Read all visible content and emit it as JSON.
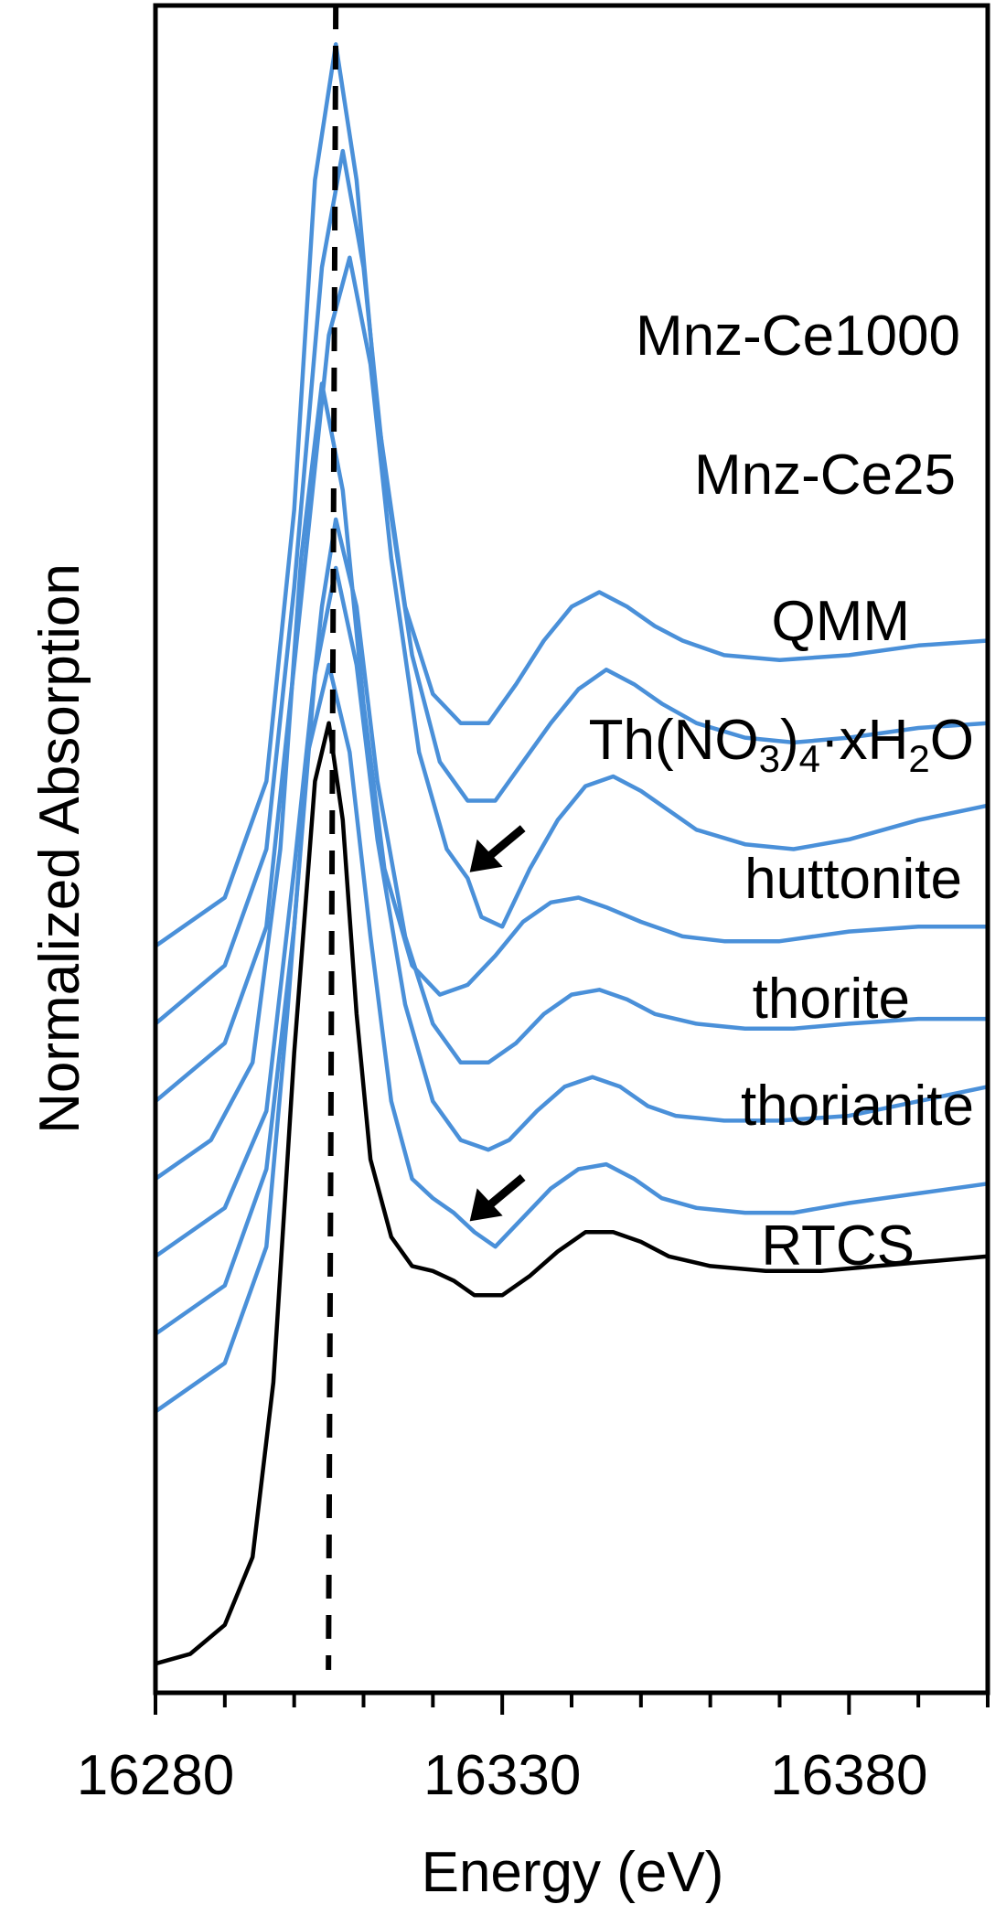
{
  "chart_data": {
    "type": "line",
    "title": "",
    "xlabel": "Energy (eV)",
    "ylabel": "Normalized Absorption",
    "xlim": [
      16280,
      16400
    ],
    "x_ticks": [
      16280,
      16330,
      16380
    ],
    "x_tick_labels": [
      "16280",
      "16330",
      "16380"
    ],
    "x_minor_tick_step": 10,
    "y_ticks": "none",
    "grid": false,
    "legend": "none (series labelled directly on curves)",
    "reference_line": {
      "x": 16306,
      "style": "dashed",
      "color": "#000000"
    },
    "series_colors": {
      "sample": "#4A90D9",
      "reference": "#000000"
    },
    "series": [
      {
        "name": "Mnz-Ce1000",
        "color": "#4A90D9",
        "points": [
          [
            16280,
            0.35
          ],
          [
            16290,
            0.4
          ],
          [
            16296,
            0.52
          ],
          [
            16300,
            0.8
          ],
          [
            16303,
            1.14
          ],
          [
            16306,
            1.28
          ],
          [
            16309,
            1.14
          ],
          [
            16312,
            0.9
          ],
          [
            16316,
            0.7
          ],
          [
            16320,
            0.61
          ],
          [
            16324,
            0.58
          ],
          [
            16328,
            0.58
          ],
          [
            16332,
            0.62
          ],
          [
            16336,
            0.665
          ],
          [
            16340,
            0.7
          ],
          [
            16344,
            0.715
          ],
          [
            16348,
            0.7
          ],
          [
            16352,
            0.68
          ],
          [
            16356,
            0.665
          ],
          [
            16362,
            0.65
          ],
          [
            16370,
            0.645
          ],
          [
            16380,
            0.65
          ],
          [
            16390,
            0.66
          ],
          [
            16400,
            0.665
          ]
        ]
      },
      {
        "name": "Mnz-Ce25",
        "color": "#4A90D9",
        "points": [
          [
            16280,
            0.27
          ],
          [
            16290,
            0.33
          ],
          [
            16296,
            0.45
          ],
          [
            16300,
            0.72
          ],
          [
            16304,
            1.05
          ],
          [
            16307,
            1.17
          ],
          [
            16310,
            1.05
          ],
          [
            16313,
            0.84
          ],
          [
            16317,
            0.65
          ],
          [
            16321,
            0.54
          ],
          [
            16325,
            0.5
          ],
          [
            16329,
            0.5
          ],
          [
            16333,
            0.54
          ],
          [
            16337,
            0.58
          ],
          [
            16341,
            0.615
          ],
          [
            16345,
            0.635
          ],
          [
            16349,
            0.62
          ],
          [
            16353,
            0.6
          ],
          [
            16358,
            0.58
          ],
          [
            16365,
            0.565
          ],
          [
            16372,
            0.56
          ],
          [
            16380,
            0.565
          ],
          [
            16390,
            0.575
          ],
          [
            16400,
            0.58
          ]
        ]
      },
      {
        "name": "QMM",
        "color": "#4A90D9",
        "points": [
          [
            16280,
            0.19
          ],
          [
            16290,
            0.25
          ],
          [
            16296,
            0.37
          ],
          [
            16300,
            0.64
          ],
          [
            16305,
            0.98
          ],
          [
            16308,
            1.06
          ],
          [
            16311,
            0.95
          ],
          [
            16314,
            0.75
          ],
          [
            16318,
            0.55
          ],
          [
            16322,
            0.45
          ],
          [
            16325,
            0.42
          ],
          [
            16327,
            0.38
          ],
          [
            16330,
            0.37
          ],
          [
            16334,
            0.43
          ],
          [
            16338,
            0.48
          ],
          [
            16342,
            0.515
          ],
          [
            16346,
            0.525
          ],
          [
            16350,
            0.51
          ],
          [
            16354,
            0.49
          ],
          [
            16358,
            0.47
          ],
          [
            16365,
            0.455
          ],
          [
            16372,
            0.45
          ],
          [
            16380,
            0.46
          ],
          [
            16390,
            0.48
          ],
          [
            16400,
            0.495
          ]
        ]
      },
      {
        "name": "Th(NO3)4·xH2O",
        "color": "#4A90D9",
        "points": [
          [
            16280,
            0.11
          ],
          [
            16288,
            0.15
          ],
          [
            16294,
            0.23
          ],
          [
            16298,
            0.45
          ],
          [
            16301,
            0.75
          ],
          [
            16304,
            0.93
          ],
          [
            16307,
            0.82
          ],
          [
            16310,
            0.6
          ],
          [
            16313,
            0.43
          ],
          [
            16317,
            0.33
          ],
          [
            16321,
            0.3
          ],
          [
            16325,
            0.31
          ],
          [
            16329,
            0.34
          ],
          [
            16333,
            0.375
          ],
          [
            16337,
            0.395
          ],
          [
            16341,
            0.4
          ],
          [
            16345,
            0.39
          ],
          [
            16350,
            0.375
          ],
          [
            16356,
            0.36
          ],
          [
            16362,
            0.355
          ],
          [
            16370,
            0.355
          ],
          [
            16380,
            0.365
          ],
          [
            16390,
            0.37
          ],
          [
            16400,
            0.37
          ]
        ]
      },
      {
        "name": "huttonite",
        "color": "#4A90D9",
        "points": [
          [
            16280,
            0.03
          ],
          [
            16290,
            0.08
          ],
          [
            16296,
            0.18
          ],
          [
            16300,
            0.43
          ],
          [
            16304,
            0.7
          ],
          [
            16306,
            0.79
          ],
          [
            16309,
            0.7
          ],
          [
            16312,
            0.52
          ],
          [
            16316,
            0.36
          ],
          [
            16320,
            0.27
          ],
          [
            16324,
            0.23
          ],
          [
            16328,
            0.23
          ],
          [
            16332,
            0.25
          ],
          [
            16336,
            0.28
          ],
          [
            16340,
            0.3
          ],
          [
            16344,
            0.305
          ],
          [
            16348,
            0.295
          ],
          [
            16352,
            0.28
          ],
          [
            16358,
            0.27
          ],
          [
            16365,
            0.265
          ],
          [
            16372,
            0.265
          ],
          [
            16380,
            0.27
          ],
          [
            16390,
            0.275
          ],
          [
            16400,
            0.275
          ]
        ]
      },
      {
        "name": "thorite",
        "color": "#4A90D9",
        "points": [
          [
            16280,
            -0.05
          ],
          [
            16290,
            0.0
          ],
          [
            16296,
            0.12
          ],
          [
            16300,
            0.37
          ],
          [
            16303,
            0.63
          ],
          [
            16306,
            0.74
          ],
          [
            16309,
            0.64
          ],
          [
            16312,
            0.46
          ],
          [
            16316,
            0.29
          ],
          [
            16320,
            0.19
          ],
          [
            16324,
            0.15
          ],
          [
            16328,
            0.14
          ],
          [
            16331,
            0.15
          ],
          [
            16335,
            0.18
          ],
          [
            16339,
            0.205
          ],
          [
            16343,
            0.215
          ],
          [
            16347,
            0.205
          ],
          [
            16351,
            0.185
          ],
          [
            16355,
            0.175
          ],
          [
            16362,
            0.17
          ],
          [
            16370,
            0.17
          ],
          [
            16380,
            0.175
          ],
          [
            16390,
            0.19
          ],
          [
            16400,
            0.205
          ]
        ]
      },
      {
        "name": "thorianite",
        "color": "#4A90D9",
        "points": [
          [
            16280,
            -0.13
          ],
          [
            16290,
            -0.08
          ],
          [
            16296,
            0.04
          ],
          [
            16299,
            0.28
          ],
          [
            16302,
            0.55
          ],
          [
            16305,
            0.64
          ],
          [
            16308,
            0.55
          ],
          [
            16311,
            0.36
          ],
          [
            16314,
            0.19
          ],
          [
            16317,
            0.11
          ],
          [
            16320,
            0.09
          ],
          [
            16323,
            0.075
          ],
          [
            16326,
            0.055
          ],
          [
            16329,
            0.04
          ],
          [
            16333,
            0.07
          ],
          [
            16337,
            0.1
          ],
          [
            16341,
            0.12
          ],
          [
            16345,
            0.125
          ],
          [
            16349,
            0.11
          ],
          [
            16353,
            0.09
          ],
          [
            16358,
            0.08
          ],
          [
            16365,
            0.075
          ],
          [
            16372,
            0.075
          ],
          [
            16380,
            0.085
          ],
          [
            16390,
            0.095
          ],
          [
            16400,
            0.105
          ]
        ]
      },
      {
        "name": "RTCS",
        "color": "#000000",
        "points": [
          [
            16280,
            -0.39
          ],
          [
            16285,
            -0.38
          ],
          [
            16290,
            -0.35
          ],
          [
            16294,
            -0.28
          ],
          [
            16297,
            -0.1
          ],
          [
            16300,
            0.24
          ],
          [
            16303,
            0.52
          ],
          [
            16305,
            0.58
          ],
          [
            16307,
            0.48
          ],
          [
            16309,
            0.28
          ],
          [
            16311,
            0.13
          ],
          [
            16314,
            0.05
          ],
          [
            16317,
            0.02
          ],
          [
            16320,
            0.015
          ],
          [
            16323,
            0.005
          ],
          [
            16326,
            -0.01
          ],
          [
            16330,
            -0.01
          ],
          [
            16334,
            0.01
          ],
          [
            16338,
            0.035
          ],
          [
            16342,
            0.055
          ],
          [
            16346,
            0.055
          ],
          [
            16350,
            0.045
          ],
          [
            16354,
            0.03
          ],
          [
            16360,
            0.02
          ],
          [
            16368,
            0.015
          ],
          [
            16376,
            0.015
          ],
          [
            16384,
            0.02
          ],
          [
            16392,
            0.025
          ],
          [
            16400,
            0.03
          ]
        ]
      }
    ],
    "annotations": [
      {
        "text": "Mnz-Ce1000",
        "series": "Mnz-Ce1000"
      },
      {
        "text": "Mnz-Ce25",
        "series": "Mnz-Ce25"
      },
      {
        "text": "QMM",
        "series": "QMM"
      },
      {
        "text": "Th(NO3)4·xH2O",
        "series": "Th(NO3)4·xH2O"
      },
      {
        "text": "huttonite",
        "series": "huttonite"
      },
      {
        "text": "thorite",
        "series": "thorite"
      },
      {
        "text": "thorianite",
        "series": "thorianite"
      },
      {
        "text": "RTCS",
        "series": "RTCS"
      }
    ],
    "arrows": [
      {
        "series": "QMM",
        "points_to": [
          16324,
          0.43
        ],
        "direction": "down-left"
      },
      {
        "series": "thorianite",
        "points_to": [
          16324,
          0.07
        ],
        "direction": "down-left"
      }
    ]
  },
  "labels": {
    "mnz1000": "Mnz-Ce1000",
    "mnz25": "Mnz-Ce25",
    "qmm": "QMM",
    "thno3": {
      "a": "Th(NO",
      "s1": "3",
      "b": ")",
      "s2": "4",
      "c": "·xH",
      "s3": "2",
      "d": "O"
    },
    "huttonite": "huttonite",
    "thorite": "thorite",
    "thorianite": "thorianite",
    "rtcs": "RTCS"
  }
}
